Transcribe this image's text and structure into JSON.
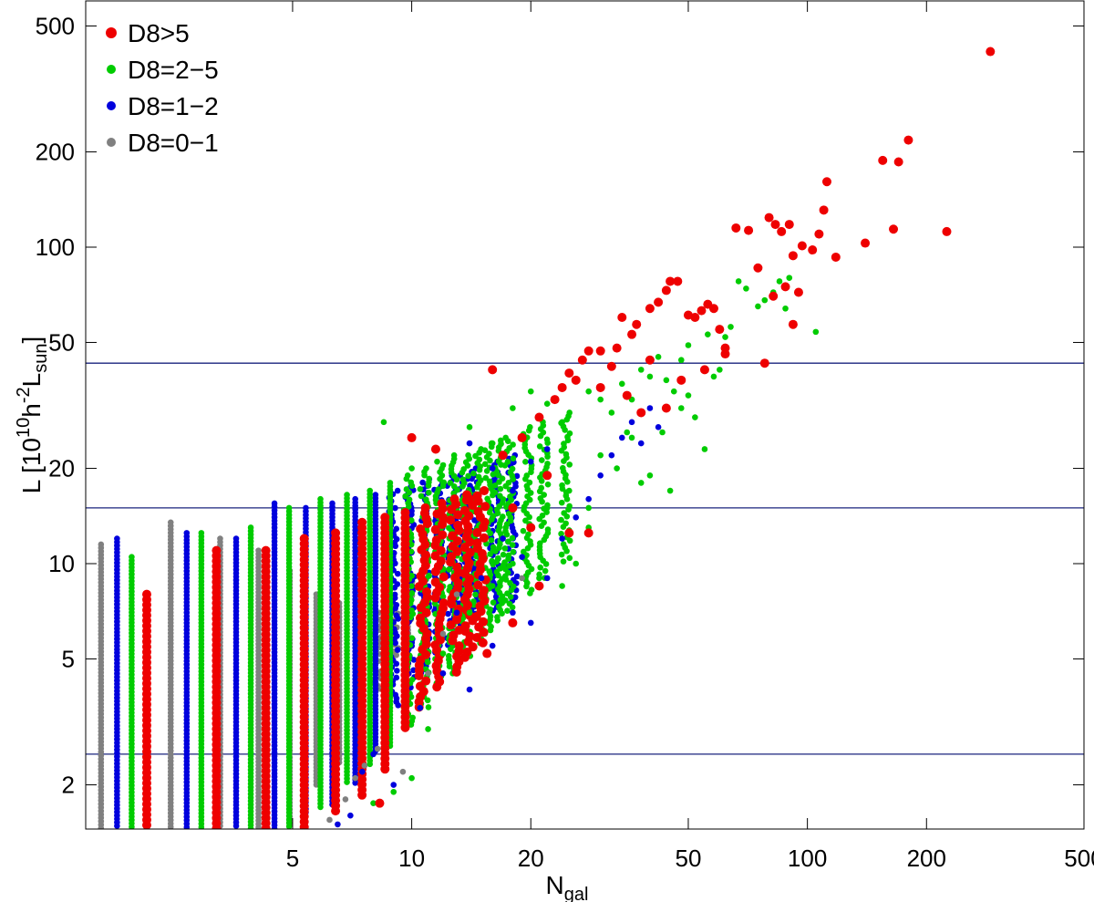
{
  "chart_data": {
    "type": "scatter",
    "title": "",
    "x_scale": "log",
    "y_scale": "log",
    "xlim": [
      1.5,
      500
    ],
    "ylim": [
      1.45,
      600
    ],
    "xlabel": {
      "main": "N",
      "sub": "gal"
    },
    "ylabel": {
      "pre": "L [10",
      "sup1": "10",
      "mid": "h",
      "sup2": "-2",
      "mid2": "L",
      "sub": "sun",
      "post": "]"
    },
    "x_ticks": [
      5,
      10,
      20,
      50,
      100,
      200,
      500
    ],
    "x_tick_labels": [
      "5",
      "10",
      "20",
      "50",
      "100",
      "200",
      "500"
    ],
    "y_ticks": [
      2,
      5,
      10,
      20,
      50,
      100,
      200,
      500
    ],
    "y_tick_labels": [
      "2",
      "5",
      "10",
      "20",
      "50",
      "100",
      "200",
      "500"
    ],
    "reference_lines_y": [
      2.5,
      15,
      43
    ],
    "legend_position": "top-left",
    "series": [
      {
        "name": "D8>5",
        "color": "#ee0000",
        "marker_size": "large"
      },
      {
        "name": "D8=2−5",
        "color": "#00cc00",
        "marker_size": "small"
      },
      {
        "name": "D8=1−2",
        "color": "#0000dd",
        "marker_size": "small"
      },
      {
        "name": "D8=0−1",
        "color": "#808080",
        "marker_size": "small"
      }
    ],
    "column_data": {
      "note": "Integer N_gal values are plotted as vertical stripes; each stripe is offset slightly per series. Values are [N_gal, L_min, L_max].",
      "D8=0−1": [
        [
          2,
          1.45,
          11.5
        ],
        [
          3,
          1.45,
          13.5
        ],
        [
          4,
          1.45,
          12.0
        ],
        [
          5,
          1.45,
          11.0
        ],
        [
          6,
          1.5,
          9.5
        ],
        [
          7,
          2.0,
          8.0
        ],
        [
          8,
          2.3,
          7.5
        ],
        [
          9,
          2.5,
          6.5
        ],
        [
          10,
          4.0,
          7.0
        ],
        [
          11,
          5.0,
          7.5
        ],
        [
          12,
          6.0,
          9.0
        ]
      ],
      "D8=1−2": [
        [
          2,
          1.45,
          12.0
        ],
        [
          3,
          1.45,
          12.5
        ],
        [
          4,
          1.45,
          12.0
        ],
        [
          5,
          1.45,
          15.5
        ],
        [
          6,
          1.6,
          15.0
        ],
        [
          7,
          1.7,
          15.5
        ],
        [
          8,
          2.0,
          16.0
        ],
        [
          9,
          2.5,
          16.5
        ],
        [
          10,
          3.5,
          17.0
        ],
        [
          11,
          4.0,
          17.5
        ],
        [
          12,
          4.5,
          18.5
        ],
        [
          13,
          5.0,
          18.0
        ],
        [
          14,
          5.5,
          19.0
        ],
        [
          15,
          6.0,
          19.0
        ],
        [
          16,
          6.5,
          20.0
        ],
        [
          18,
          7.0,
          21.0
        ],
        [
          20,
          7.5,
          22.0
        ]
      ],
      "D8=2−5": [
        [
          2,
          1.45,
          10.5
        ],
        [
          3,
          1.45,
          12.5
        ],
        [
          4,
          1.45,
          13.0
        ],
        [
          5,
          1.45,
          15.0
        ],
        [
          6,
          1.7,
          16.0
        ],
        [
          7,
          2.0,
          16.5
        ],
        [
          8,
          2.3,
          17.0
        ],
        [
          9,
          2.6,
          18.0
        ],
        [
          10,
          3.0,
          19.0
        ],
        [
          11,
          3.5,
          20.0
        ],
        [
          12,
          4.0,
          21.0
        ],
        [
          13,
          4.5,
          22.0
        ],
        [
          14,
          5.0,
          22.0
        ],
        [
          15,
          5.5,
          23.0
        ],
        [
          16,
          6.0,
          24.0
        ],
        [
          17,
          6.5,
          24.5
        ],
        [
          18,
          7.0,
          25.0
        ],
        [
          20,
          8.0,
          27.0
        ],
        [
          22,
          9.0,
          28.0
        ],
        [
          25,
          10.0,
          30.0
        ]
      ],
      "D8>5": [
        [
          2,
          1.45,
          8.0
        ],
        [
          3,
          1.45,
          11.0
        ],
        [
          4,
          1.45,
          11.0
        ],
        [
          5,
          1.45,
          12.0
        ],
        [
          6,
          1.6,
          12.5
        ],
        [
          7,
          1.8,
          13.5
        ],
        [
          8,
          2.2,
          14.0
        ],
        [
          9,
          3.0,
          14.5
        ],
        [
          10,
          3.5,
          15.0
        ],
        [
          11,
          4.0,
          15.5
        ],
        [
          12,
          4.5,
          16.0
        ],
        [
          13,
          5.0,
          16.5
        ],
        [
          14,
          5.5,
          17.0
        ]
      ]
    },
    "scatter_points": {
      "D8>5": [
        [
          8.3,
          1.75
        ],
        [
          15.5,
          5.2
        ],
        [
          18,
          6.5
        ],
        [
          21,
          8.5
        ],
        [
          25,
          12.5
        ],
        [
          28,
          12.5
        ],
        [
          17,
          22
        ],
        [
          19,
          25
        ],
        [
          21,
          29
        ],
        [
          23,
          33
        ],
        [
          24,
          36
        ],
        [
          26,
          38
        ],
        [
          27,
          44
        ],
        [
          28,
          47
        ],
        [
          30,
          47
        ],
        [
          33,
          48
        ],
        [
          34,
          60
        ],
        [
          37,
          57
        ],
        [
          40,
          64
        ],
        [
          42,
          67
        ],
        [
          44,
          73
        ],
        [
          45,
          78
        ],
        [
          47,
          78
        ],
        [
          50,
          61
        ],
        [
          52,
          60
        ],
        [
          54,
          63
        ],
        [
          56,
          66
        ],
        [
          58,
          64
        ],
        [
          60,
          55
        ],
        [
          62,
          48
        ],
        [
          66,
          115
        ],
        [
          71,
          113
        ],
        [
          75,
          86
        ],
        [
          80,
          124
        ],
        [
          83,
          118
        ],
        [
          86,
          112
        ],
        [
          90,
          118
        ],
        [
          92,
          94
        ],
        [
          97,
          101
        ],
        [
          103,
          98
        ],
        [
          107,
          110
        ],
        [
          110,
          131
        ],
        [
          112,
          161
        ],
        [
          118,
          93
        ],
        [
          140,
          103
        ],
        [
          155,
          188
        ],
        [
          170,
          186
        ],
        [
          180,
          218
        ],
        [
          165,
          114
        ],
        [
          225,
          112
        ],
        [
          290,
          415
        ],
        [
          16,
          41
        ],
        [
          25,
          40
        ],
        [
          30,
          36
        ],
        [
          35,
          34
        ],
        [
          38,
          30
        ],
        [
          44,
          31
        ],
        [
          48,
          38
        ],
        [
          55,
          41
        ],
        [
          62,
          46
        ],
        [
          78,
          43
        ],
        [
          82,
          70
        ],
        [
          88,
          75
        ],
        [
          92,
          57
        ],
        [
          95,
          72
        ],
        [
          40,
          44
        ],
        [
          36,
          53
        ],
        [
          32,
          42
        ],
        [
          22,
          19
        ],
        [
          20,
          13
        ],
        [
          18,
          15
        ],
        [
          14,
          16
        ],
        [
          12,
          14
        ],
        [
          10,
          25
        ],
        [
          11.5,
          23
        ]
      ],
      "D8=2−5": [
        [
          8.5,
          28
        ],
        [
          10,
          20
        ],
        [
          12,
          18
        ],
        [
          14,
          27
        ],
        [
          16,
          24
        ],
        [
          18,
          31
        ],
        [
          20,
          35
        ],
        [
          22,
          32
        ],
        [
          24,
          28
        ],
        [
          26,
          38
        ],
        [
          28,
          35
        ],
        [
          30,
          33
        ],
        [
          32,
          30
        ],
        [
          34,
          37
        ],
        [
          36,
          33
        ],
        [
          38,
          41
        ],
        [
          40,
          39
        ],
        [
          42,
          45
        ],
        [
          44,
          38
        ],
        [
          46,
          35
        ],
        [
          48,
          31
        ],
        [
          50,
          34
        ],
        [
          52,
          29
        ],
        [
          55,
          23
        ],
        [
          58,
          39
        ],
        [
          60,
          41
        ],
        [
          62,
          52
        ],
        [
          64,
          56
        ],
        [
          67,
          78
        ],
        [
          70,
          74
        ],
        [
          75,
          65
        ],
        [
          78,
          68
        ],
        [
          82,
          72
        ],
        [
          85,
          78
        ],
        [
          88,
          64
        ],
        [
          90,
          80
        ],
        [
          105,
          54
        ],
        [
          30,
          22
        ],
        [
          33,
          20
        ],
        [
          36,
          25
        ],
        [
          40,
          19
        ],
        [
          45,
          17
        ],
        [
          25,
          17
        ],
        [
          28,
          15
        ],
        [
          22,
          15
        ],
        [
          20,
          13
        ],
        [
          18,
          10
        ],
        [
          16,
          8.5
        ],
        [
          14,
          7
        ],
        [
          12,
          5.2
        ],
        [
          11,
          3.0
        ],
        [
          10,
          2.1
        ],
        [
          9,
          1.9
        ],
        [
          8,
          1.75
        ],
        [
          21,
          9
        ],
        [
          24,
          8.5
        ],
        [
          26,
          10
        ],
        [
          28,
          13
        ],
        [
          35,
          26
        ],
        [
          38,
          18
        ],
        [
          43,
          26
        ],
        [
          50,
          49
        ],
        [
          56,
          53
        ],
        [
          48,
          44
        ]
      ],
      "D8=1−2": [
        [
          6.5,
          1.5
        ],
        [
          7,
          1.6
        ],
        [
          7.5,
          2.2
        ],
        [
          8,
          2.5
        ],
        [
          9,
          2.0
        ],
        [
          10.5,
          3.5
        ],
        [
          12,
          4.5
        ],
        [
          14,
          4.0
        ],
        [
          16,
          5.5
        ],
        [
          18,
          7.0
        ],
        [
          20,
          6.5
        ],
        [
          22,
          9.0
        ],
        [
          24,
          12
        ],
        [
          26,
          14
        ],
        [
          28,
          16
        ],
        [
          30,
          19
        ],
        [
          32,
          22
        ],
        [
          34,
          25
        ],
        [
          36,
          28
        ],
        [
          38,
          24
        ],
        [
          40,
          31
        ],
        [
          42,
          27
        ],
        [
          14,
          24
        ],
        [
          16,
          20
        ],
        [
          18,
          17
        ],
        [
          20,
          21
        ],
        [
          22,
          23
        ],
        [
          15,
          9
        ],
        [
          13,
          7
        ],
        [
          17,
          12
        ],
        [
          19,
          10.5
        ]
      ],
      "D8=0−1": [
        [
          6.2,
          1.55
        ],
        [
          6.8,
          1.8
        ],
        [
          7.2,
          2.1
        ],
        [
          7.6,
          2.3
        ],
        [
          8.2,
          2.6
        ],
        [
          9.5,
          2.2
        ],
        [
          10.5,
          3.5
        ],
        [
          11,
          4.5
        ],
        [
          12,
          6
        ],
        [
          19,
          9
        ],
        [
          13,
          8
        ]
      ]
    }
  }
}
